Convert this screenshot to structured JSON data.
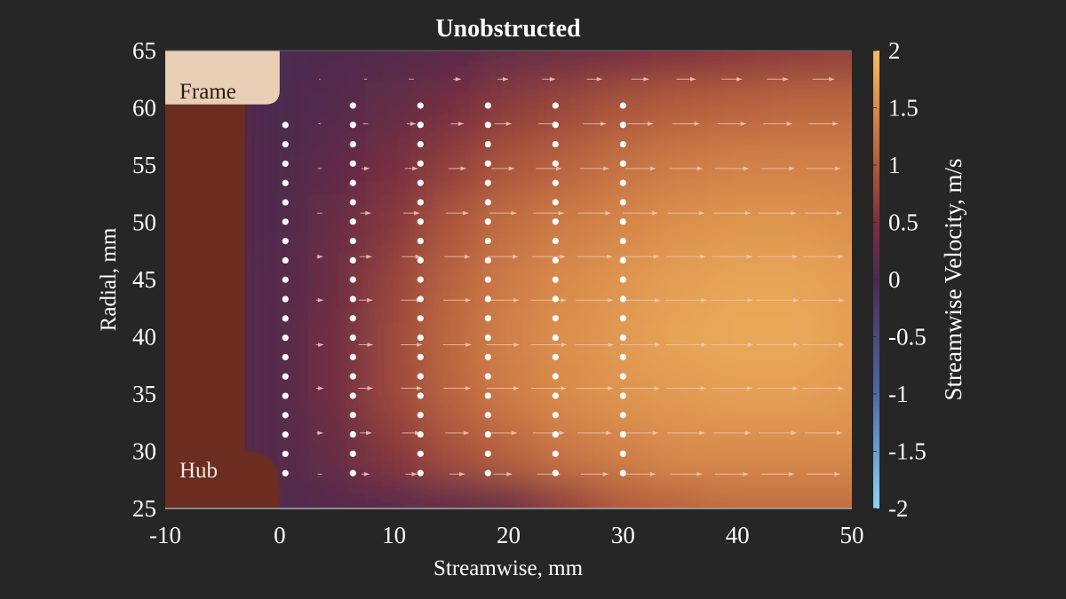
{
  "chart_data": {
    "type": "heatmap",
    "title": "Unobstructed",
    "xlabel": "Streamwise, mm",
    "ylabel": "Radial, mm",
    "colorbar_label": "Streamwise Velocity, m/s",
    "xlim": [
      -10,
      50
    ],
    "ylim": [
      25,
      65
    ],
    "clim": [
      -2,
      2
    ],
    "xticks": [
      "-10",
      "0",
      "10",
      "20",
      "30",
      "40",
      "50"
    ],
    "yticks": [
      "25",
      "30",
      "35",
      "40",
      "45",
      "50",
      "55",
      "60",
      "65"
    ],
    "cticks": [
      "-2",
      "-1.5",
      "-1",
      "-0.5",
      "0",
      "0.5",
      "1",
      "1.5",
      "2"
    ],
    "colormap": [
      {
        "v": -2,
        "color": "#8fd3f5"
      },
      {
        "v": -1,
        "color": "#4c6aa6"
      },
      {
        "v": 0,
        "color": "#4b2a50"
      },
      {
        "v": 0.5,
        "color": "#7c2f3e"
      },
      {
        "v": 1,
        "color": "#b15a3c"
      },
      {
        "v": 1.5,
        "color": "#d98b4c"
      },
      {
        "v": 2,
        "color": "#f4bd62"
      }
    ],
    "grid_x": [
      0,
      5,
      10,
      15,
      20,
      25,
      30,
      35,
      40,
      45,
      50
    ],
    "grid_y": [
      25,
      30,
      35,
      40,
      45,
      50,
      55,
      60,
      65
    ],
    "velocity": [
      [
        0.05,
        0.1,
        0.15,
        0.2,
        0.3,
        0.7,
        1.0,
        1.1,
        1.2,
        1.2,
        1.2
      ],
      [
        0.1,
        0.3,
        0.6,
        0.9,
        1.1,
        1.3,
        1.4,
        1.5,
        1.5,
        1.5,
        1.5
      ],
      [
        0.1,
        0.4,
        0.8,
        1.1,
        1.35,
        1.5,
        1.6,
        1.65,
        1.7,
        1.7,
        1.65
      ],
      [
        0.1,
        0.4,
        0.8,
        1.15,
        1.4,
        1.55,
        1.65,
        1.75,
        1.8,
        1.8,
        1.7
      ],
      [
        0.1,
        0.35,
        0.75,
        1.1,
        1.35,
        1.5,
        1.6,
        1.7,
        1.75,
        1.75,
        1.7
      ],
      [
        0.05,
        0.3,
        0.6,
        0.95,
        1.2,
        1.35,
        1.45,
        1.55,
        1.6,
        1.6,
        1.55
      ],
      [
        0.05,
        0.2,
        0.45,
        0.7,
        0.95,
        1.1,
        1.25,
        1.35,
        1.4,
        1.4,
        1.4
      ],
      [
        0.0,
        0.1,
        0.25,
        0.45,
        0.65,
        0.8,
        0.95,
        1.05,
        1.1,
        1.15,
        1.15
      ],
      [
        0.0,
        0.05,
        0.1,
        0.15,
        0.25,
        0.35,
        0.45,
        0.55,
        0.6,
        0.65,
        0.7
      ]
    ],
    "measurement_points": {
      "x": [
        0.5,
        6.4,
        12.3,
        18.2,
        24.1,
        30.0
      ],
      "y_top": [
        58.5,
        60.2,
        60.2,
        60.2,
        60.2,
        60.2
      ],
      "y_bottom": 28.0,
      "y_step": 1.69
    },
    "quiver": {
      "x": [
        3.5,
        7.5,
        11.5,
        15.5,
        19.5,
        23.5,
        27.5,
        31.5,
        35.5,
        39.5,
        43.5,
        47.5
      ],
      "y": [
        62.5,
        58.6,
        54.7,
        50.8,
        47.0,
        43.2,
        39.3,
        35.5,
        31.6,
        28.0
      ]
    },
    "annotations": {
      "frame": "Frame",
      "hub": "Hub"
    },
    "colors": {
      "frame": "#e8cfb6",
      "hub": "#6a2d1f",
      "points": "#ffffff",
      "arrows": "#f0c8b8"
    }
  }
}
